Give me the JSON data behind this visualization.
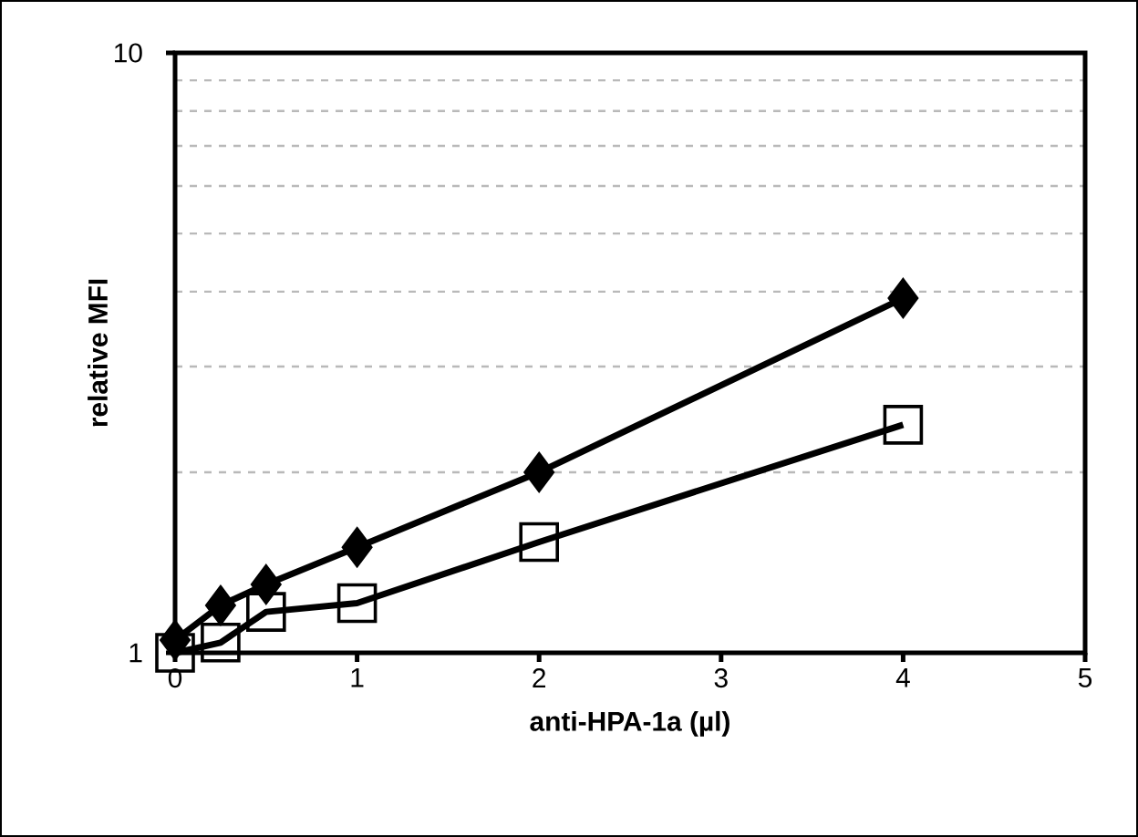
{
  "chart_data": {
    "type": "line",
    "xlabel": "anti-HPA-1a (µl)",
    "ylabel": "relative MFI",
    "xlim": [
      0,
      5
    ],
    "xticks": [
      0,
      1,
      2,
      3,
      4,
      5
    ],
    "ylim": [
      1,
      10
    ],
    "yticks": [
      1,
      10
    ],
    "log": "y",
    "grid": "y",
    "legend": false,
    "line_style": "solid",
    "series": [
      {
        "color": "#000000",
        "marker": "diamond",
        "x": [
          0,
          0.25,
          0.5,
          1,
          2,
          4
        ],
        "values": [
          1.05,
          1.2,
          1.3,
          1.5,
          2.0,
          3.9
        ]
      },
      {
        "color": "#000000",
        "marker": "square",
        "x": [
          0,
          0.25,
          0.5,
          1,
          2,
          4
        ],
        "values": [
          1.0,
          1.04,
          1.17,
          1.21,
          1.53,
          2.4
        ]
      }
    ]
  }
}
